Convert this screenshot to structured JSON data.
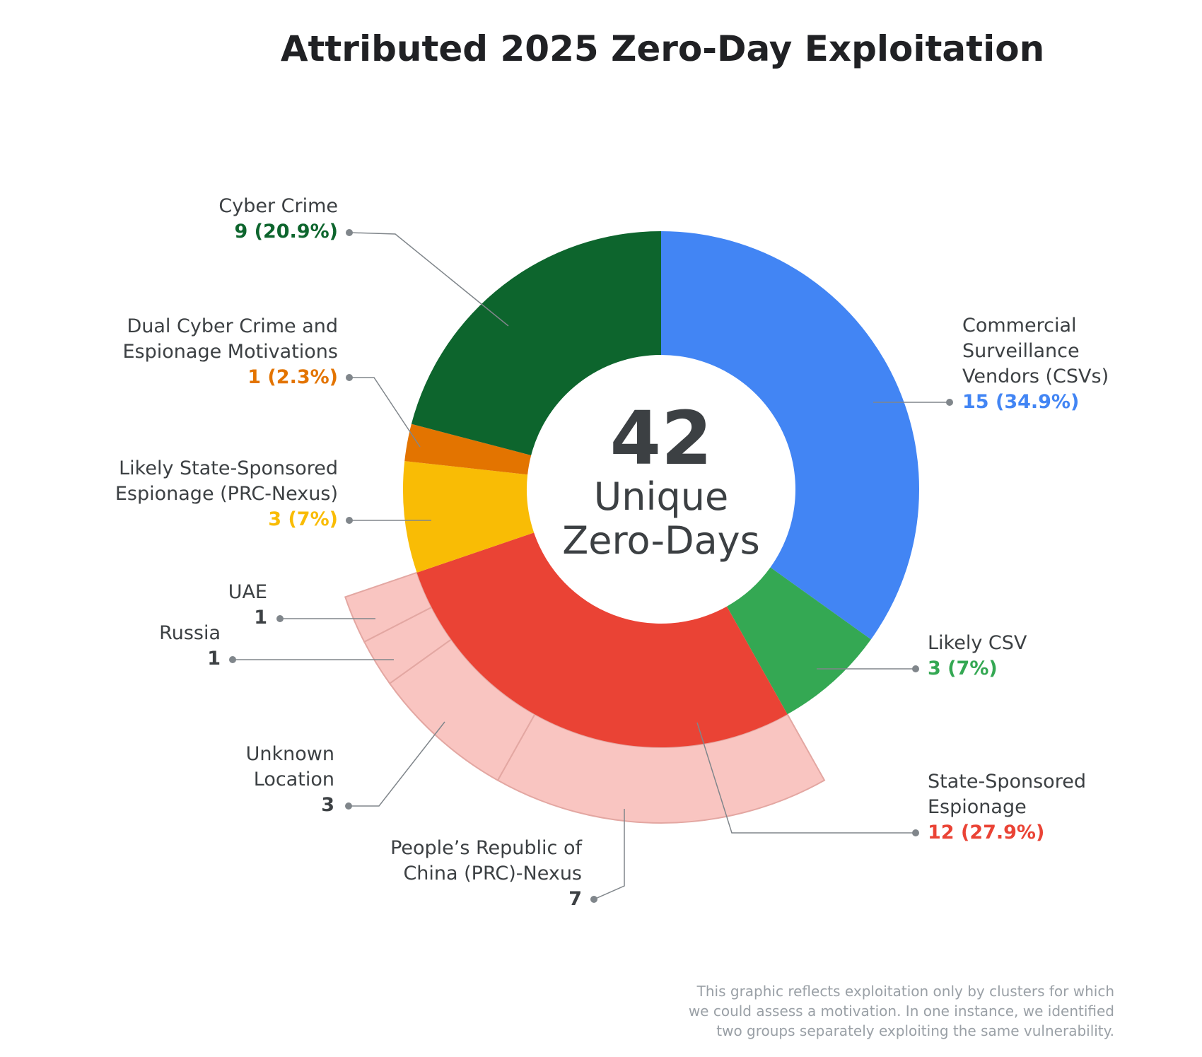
{
  "chart_data": {
    "type": "donut",
    "title": "Attributed 2025 Zero-Day Exploitation",
    "total": 42,
    "center_label": "Unique\nZero-Days",
    "categories": [
      "Commercial\nSurveillance\nVendors (CSVs)",
      "Likely CSV",
      "State-Sponsored\nEspionage",
      "Likely State-Sponsored\nEspionage (PRC-Nexus)",
      "Dual Cyber Crime and\nEspionage Motivations",
      "Cyber Crime"
    ],
    "values": [
      15,
      3,
      12,
      3,
      1,
      9
    ],
    "value_labels": [
      "15 (34.9%)",
      "3 (7%)",
      "12 (27.9%)",
      "3 (7%)",
      "1 (2.3%)",
      "9 (20.9%)"
    ],
    "colors": [
      "#4285f4",
      "#34a853",
      "#ea4335",
      "#f9bc05",
      "#e37400",
      "#0d652d"
    ],
    "outer_ring": {
      "parent": "State-Sponsored\nEspionage",
      "color": "#f9c5c1",
      "categories": [
        "People’s Republic of\nChina (PRC)-Nexus",
        "Unknown\nLocation",
        "Russia",
        "UAE"
      ],
      "values": [
        7,
        3,
        1,
        1
      ]
    },
    "note": "This graphic reflects exploitation only by clusters for which\nwe could assess a motivation. In one instance, we identified\ntwo groups separately exploiting the same vulnerability."
  }
}
